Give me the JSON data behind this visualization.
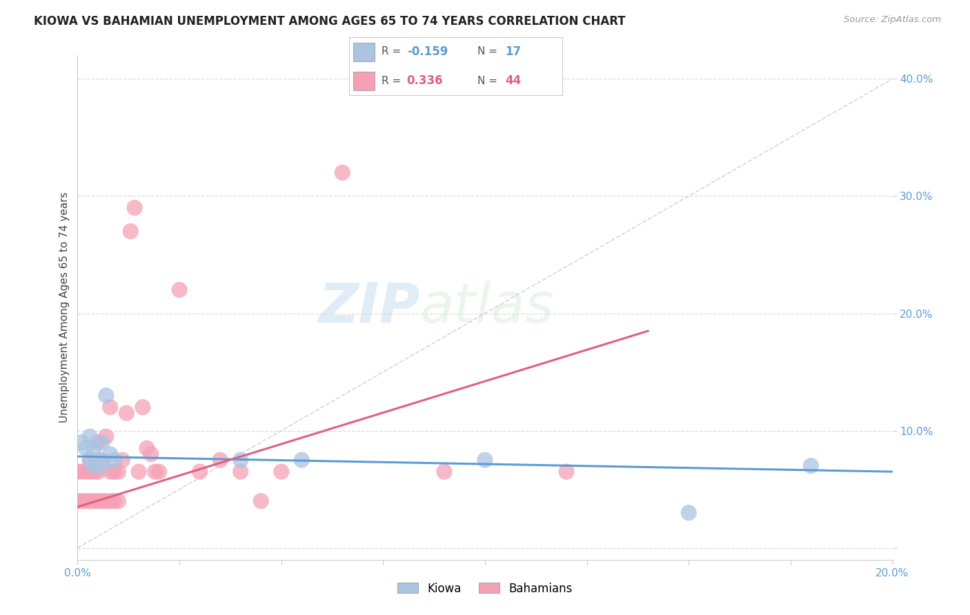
{
  "title": "KIOWA VS BAHAMIAN UNEMPLOYMENT AMONG AGES 65 TO 74 YEARS CORRELATION CHART",
  "source": "Source: ZipAtlas.com",
  "ylabel": "Unemployment Among Ages 65 to 74 years",
  "xlim": [
    0.0,
    0.2
  ],
  "ylim": [
    -0.01,
    0.42
  ],
  "xticks": [
    0.0,
    0.025,
    0.05,
    0.075,
    0.1,
    0.125,
    0.15,
    0.175,
    0.2
  ],
  "yticks": [
    0.0,
    0.1,
    0.2,
    0.3,
    0.4
  ],
  "kiowa_color": "#aac4e2",
  "bahamian_color": "#f5a0b5",
  "kiowa_line_color": "#5b9bd5",
  "bahamian_line_color": "#e06080",
  "kiowa_x": [
    0.001,
    0.002,
    0.003,
    0.003,
    0.004,
    0.004,
    0.005,
    0.006,
    0.006,
    0.007,
    0.008,
    0.009,
    0.04,
    0.055,
    0.1,
    0.15,
    0.18
  ],
  "kiowa_y": [
    0.09,
    0.085,
    0.075,
    0.095,
    0.07,
    0.085,
    0.075,
    0.07,
    0.09,
    0.13,
    0.08,
    0.075,
    0.075,
    0.075,
    0.075,
    0.03,
    0.07
  ],
  "bahamian_x": [
    0.0,
    0.0,
    0.001,
    0.001,
    0.002,
    0.002,
    0.003,
    0.003,
    0.003,
    0.004,
    0.004,
    0.005,
    0.005,
    0.005,
    0.006,
    0.006,
    0.007,
    0.007,
    0.008,
    0.008,
    0.008,
    0.009,
    0.009,
    0.01,
    0.01,
    0.011,
    0.012,
    0.013,
    0.014,
    0.015,
    0.016,
    0.017,
    0.018,
    0.019,
    0.02,
    0.025,
    0.03,
    0.035,
    0.04,
    0.045,
    0.05,
    0.065,
    0.09,
    0.12
  ],
  "bahamian_y": [
    0.04,
    0.065,
    0.04,
    0.065,
    0.04,
    0.065,
    0.04,
    0.065,
    0.075,
    0.04,
    0.065,
    0.04,
    0.065,
    0.09,
    0.04,
    0.075,
    0.04,
    0.095,
    0.04,
    0.065,
    0.12,
    0.04,
    0.065,
    0.04,
    0.065,
    0.075,
    0.115,
    0.27,
    0.29,
    0.065,
    0.12,
    0.085,
    0.08,
    0.065,
    0.065,
    0.22,
    0.065,
    0.075,
    0.065,
    0.04,
    0.065,
    0.32,
    0.065,
    0.065
  ],
  "watermark_zip": "ZIP",
  "watermark_atlas": "atlas",
  "background_color": "#ffffff",
  "grid_color": "#d8d8d8",
  "title_fontsize": 12,
  "axis_label_fontsize": 11,
  "tick_fontsize": 11,
  "legend_fontsize": 12
}
